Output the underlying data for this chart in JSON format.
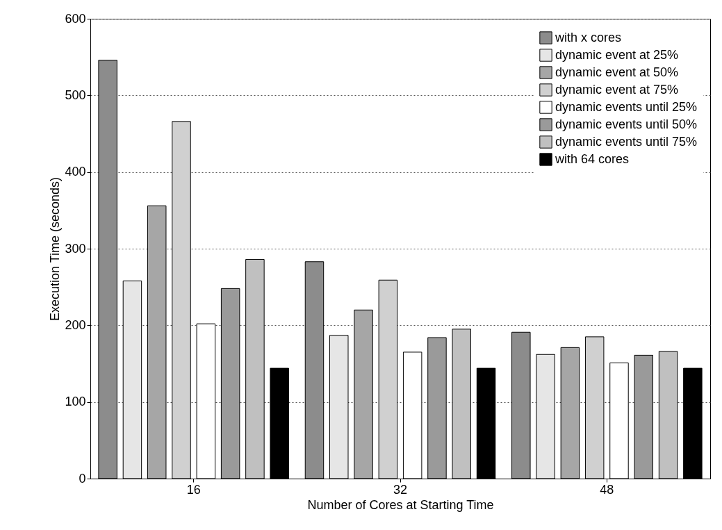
{
  "chart_data": {
    "type": "bar",
    "xlabel": "Number of Cores at Starting Time",
    "ylabel": "Execution Time (seconds)",
    "categories": [
      "16",
      "32",
      "48"
    ],
    "series": [
      {
        "name": "with x cores",
        "color": "#8c8c8c",
        "values": [
          546,
          283,
          191
        ]
      },
      {
        "name": "dynamic event at 25%",
        "color": "#e6e6e6",
        "values": [
          258,
          187,
          162
        ]
      },
      {
        "name": "dynamic event at 50%",
        "color": "#a6a6a6",
        "values": [
          356,
          220,
          171
        ]
      },
      {
        "name": "dynamic event at 75%",
        "color": "#d0d0d0",
        "values": [
          466,
          259,
          185
        ]
      },
      {
        "name": "dynamic events until 25%",
        "color": "#ffffff",
        "values": [
          202,
          165,
          151
        ]
      },
      {
        "name": "dynamic events until 50%",
        "color": "#9a9a9a",
        "values": [
          248,
          184,
          161
        ]
      },
      {
        "name": "dynamic events until 75%",
        "color": "#c0c0c0",
        "values": [
          286,
          195,
          166
        ]
      },
      {
        "name": "with 64 cores",
        "color": "#000000",
        "values": [
          144,
          144,
          144
        ]
      }
    ],
    "ylim": [
      0,
      600
    ],
    "yticks": [
      0,
      100,
      200,
      300,
      400,
      500,
      600
    ],
    "grid": "y",
    "legend": "top right"
  }
}
